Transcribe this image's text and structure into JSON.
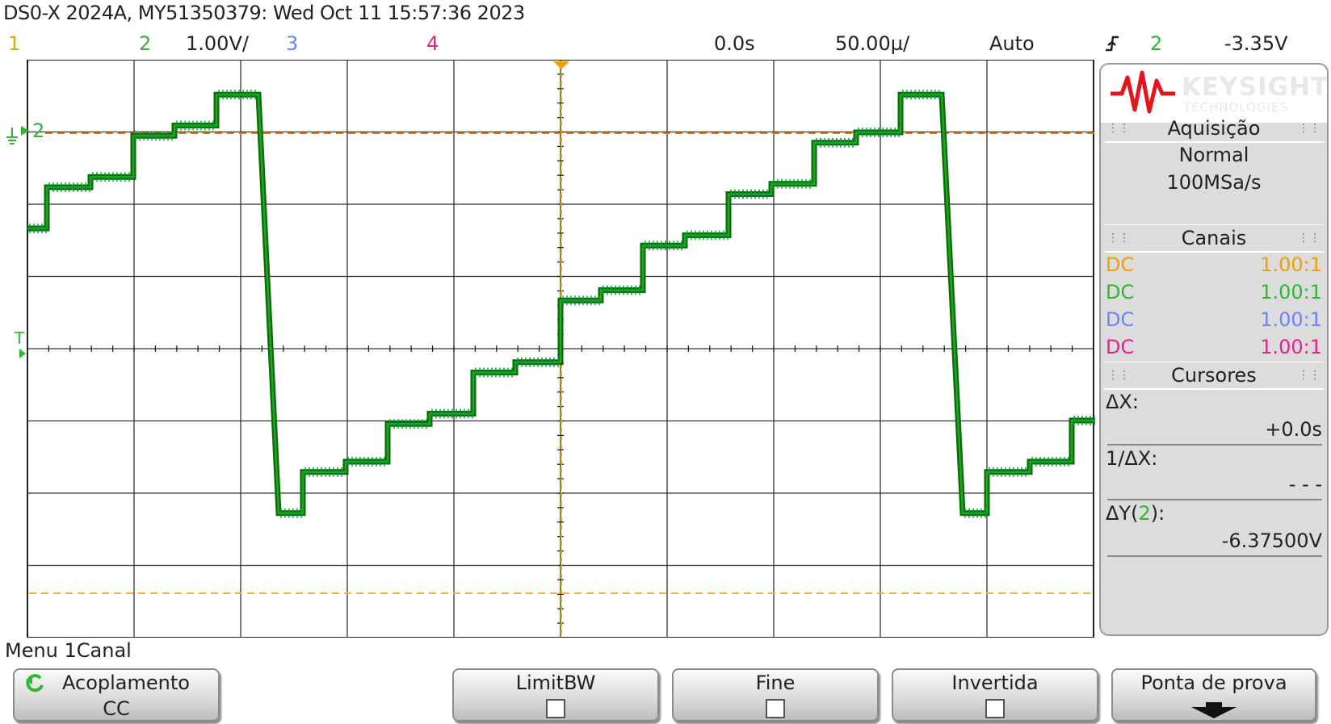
{
  "window": {
    "title": "DS0-X 2024A, MY51350379: Wed Oct 11 15:57:36 2023"
  },
  "status_bar": {
    "ch1": "1",
    "ch2": "2",
    "ch2_scale": "1.00V/",
    "ch3": "3",
    "ch4": "4",
    "delay": "0.0s",
    "timebase": "50.00µ/",
    "trigger_mode": "Auto",
    "trigger_source": "2",
    "trigger_level": "-3.35V"
  },
  "colors": {
    "ch1": "#f0a000",
    "ch2": "#2eb82e",
    "ch3": "#6a84ff",
    "ch4": "#e8208a",
    "trace": "#0b7d0b",
    "grid": "#222222"
  },
  "markers": {
    "ch2_ground": "2",
    "trigger": "T"
  },
  "side_panel": {
    "brand_name": "KEYSIGHT",
    "brand_sub": "TECHNOLOGIES",
    "acquisition": {
      "title": "Aquisição",
      "mode": "Normal",
      "rate": "100MSa/s"
    },
    "channels": {
      "title": "Canais",
      "rows": [
        {
          "coupling": "DC",
          "probe": "1.00:1"
        },
        {
          "coupling": "DC",
          "probe": "1.00:1"
        },
        {
          "coupling": "DC",
          "probe": "1.00:1"
        },
        {
          "coupling": "DC",
          "probe": "1.00:1"
        }
      ]
    },
    "cursors": {
      "title": "Cursores",
      "dx_label": "ΔX:",
      "dx_value": "+0.0s",
      "inv_dx_label": "1/ΔX:",
      "inv_dx_value": "- - -",
      "dy_label_prefix": "ΔY(",
      "dy_channel": "2",
      "dy_label_suffix": "):",
      "dy_value": "-6.37500V"
    }
  },
  "menu": {
    "title": "Menu 1Canal",
    "softkeys": [
      {
        "label": "Acoplamento",
        "value": "CC"
      },
      {
        "label": "LimitBW",
        "checked": false
      },
      {
        "label": "Fine",
        "checked": false
      },
      {
        "label": "Invertida",
        "checked": false
      },
      {
        "label": "Ponta de prova"
      }
    ]
  }
}
